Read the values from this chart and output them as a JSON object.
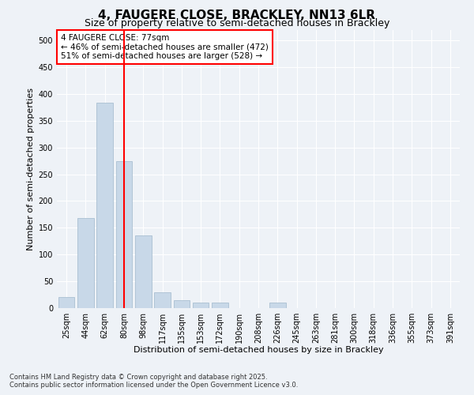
{
  "title": "4, FAUGERE CLOSE, BRACKLEY, NN13 6LR",
  "subtitle": "Size of property relative to semi-detached houses in Brackley",
  "xlabel": "Distribution of semi-detached houses by size in Brackley",
  "ylabel": "Number of semi-detached properties",
  "categories": [
    "25sqm",
    "44sqm",
    "62sqm",
    "80sqm",
    "98sqm",
    "117sqm",
    "135sqm",
    "153sqm",
    "172sqm",
    "190sqm",
    "208sqm",
    "226sqm",
    "245sqm",
    "263sqm",
    "281sqm",
    "300sqm",
    "318sqm",
    "336sqm",
    "355sqm",
    "373sqm",
    "391sqm"
  ],
  "values": [
    20,
    168,
    383,
    275,
    135,
    30,
    15,
    10,
    10,
    0,
    0,
    10,
    0,
    0,
    0,
    0,
    0,
    0,
    0,
    0,
    0
  ],
  "bar_color": "#c8d8e8",
  "bar_edge_color": "#a0b8cc",
  "vline_x": 3,
  "vline_color": "red",
  "annotation_text": "4 FAUGERE CLOSE: 77sqm\n← 46% of semi-detached houses are smaller (472)\n51% of semi-detached houses are larger (528) →",
  "annotation_box_color": "white",
  "annotation_box_edge_color": "red",
  "ylim": [
    0,
    520
  ],
  "yticks": [
    0,
    50,
    100,
    150,
    200,
    250,
    300,
    350,
    400,
    450,
    500
  ],
  "footer_text": "Contains HM Land Registry data © Crown copyright and database right 2025.\nContains public sector information licensed under the Open Government Licence v3.0.",
  "background_color": "#eef2f7",
  "plot_background_color": "#eef2f7",
  "grid_color": "white",
  "title_fontsize": 11,
  "subtitle_fontsize": 9,
  "axis_label_fontsize": 8,
  "tick_fontsize": 7,
  "annotation_fontsize": 7.5,
  "footer_fontsize": 6
}
